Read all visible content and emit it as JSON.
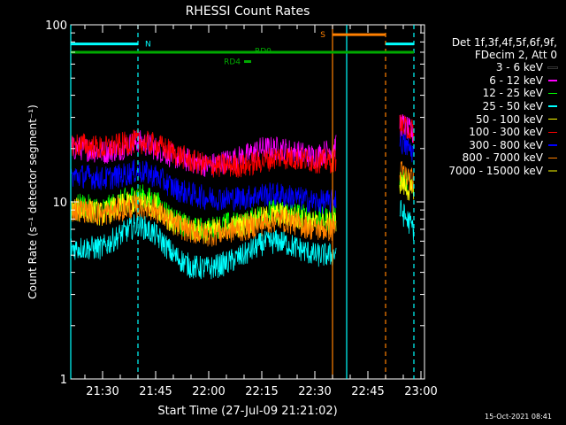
{
  "window": {
    "footer_stamp": "15-Oct-2021 08:41"
  },
  "legend": {
    "header_lines": [
      "Det 1f,3f,4f,5f,6f,9f,",
      "FDecim 2, Att 0"
    ]
  },
  "attenuator_labels": [
    {
      "text": "N",
      "color": "#00ffff"
    },
    {
      "text": "S",
      "color": "#ff8000"
    },
    {
      "text": "RD0",
      "color": "#00aa00"
    },
    {
      "text": "RD4",
      "color": "#00aa00"
    }
  ],
  "chart_data": {
    "type": "line",
    "title": "RHESSI Count Rates",
    "xlabel": "Start Time (27-Jul-09 21:21:02)",
    "ylabel": "Count Rate (s⁻¹ detector segment⁻¹)",
    "yscale": "log",
    "ylim": [
      1,
      100
    ],
    "xlim": [
      "21:21",
      "23:01"
    ],
    "y_ticks": [
      "1",
      "10",
      "100"
    ],
    "x_ticks": [
      "21:30",
      "21:45",
      "22:00",
      "22:15",
      "22:30",
      "22:45",
      "23:00"
    ],
    "grid": false,
    "legend_position": "right",
    "data_gap": {
      "start": "22:36",
      "end": "22:53"
    },
    "vertical_lines": [
      {
        "time": "21:21",
        "style": "solid",
        "color": "#00ffff"
      },
      {
        "time": "21:40",
        "style": "dashed",
        "color": "#00ffff"
      },
      {
        "time": "22:35",
        "style": "solid",
        "color": "#ff8000"
      },
      {
        "time": "22:39",
        "style": "solid",
        "color": "#00ffff"
      },
      {
        "time": "22:50",
        "style": "dashed",
        "color": "#ff8000"
      },
      {
        "time": "22:58",
        "style": "dashed",
        "color": "#00ffff"
      }
    ],
    "bars": [
      {
        "label": "N",
        "color": "#00ffff",
        "y": 78,
        "segments": [
          [
            "21:21",
            "21:40"
          ],
          [
            "22:50",
            "22:58"
          ]
        ]
      },
      {
        "label": "S",
        "color": "#ff8000",
        "y": 88,
        "segments": [
          [
            "22:35",
            "22:50"
          ]
        ]
      },
      {
        "label": "RD0",
        "color": "#00aa00",
        "y": 70,
        "segments": [
          [
            "21:21",
            "22:58"
          ]
        ]
      },
      {
        "label": "RD4",
        "color": "#00aa00",
        "y": 62,
        "segments": [
          [
            "22:10",
            "22:12"
          ]
        ]
      }
    ],
    "series": [
      {
        "name": "3 - 6 keV",
        "color": "#000000",
        "x": [
          "21:21",
          "21:25",
          "21:30",
          "21:35",
          "21:40",
          "21:45",
          "21:50",
          "21:55",
          "22:00",
          "22:05",
          "22:10",
          "22:15",
          "22:20",
          "22:25",
          "22:30",
          "22:35",
          "22:54",
          "22:58"
        ],
        "y": [
          9,
          9,
          8.5,
          9,
          10,
          9.5,
          8,
          7,
          7,
          7.5,
          7.5,
          9,
          10,
          9.5,
          9,
          9,
          20,
          16
        ]
      },
      {
        "name": "6 - 12 keV",
        "color": "#ff00ff",
        "x": [
          "21:21",
          "21:25",
          "21:30",
          "21:35",
          "21:40",
          "21:45",
          "21:50",
          "21:55",
          "22:00",
          "22:05",
          "22:10",
          "22:15",
          "22:20",
          "22:25",
          "22:30",
          "22:35",
          "22:54",
          "22:58"
        ],
        "y": [
          20,
          20,
          19,
          20,
          22,
          20,
          18,
          17,
          16,
          17,
          18,
          20,
          20,
          19,
          18,
          20,
          28,
          24
        ]
      },
      {
        "name": "12 - 25 keV",
        "color": "#00ff00",
        "x": [
          "21:21",
          "21:25",
          "21:30",
          "21:35",
          "21:40",
          "21:45",
          "21:50",
          "21:55",
          "22:00",
          "22:05",
          "22:10",
          "22:15",
          "22:20",
          "22:25",
          "22:30",
          "22:35",
          "22:54",
          "22:58"
        ],
        "y": [
          9.5,
          9.5,
          9,
          10,
          11,
          10,
          8,
          7,
          7,
          7.5,
          7.5,
          8.5,
          9,
          8.5,
          8,
          8,
          14,
          12
        ]
      },
      {
        "name": "25 - 50 keV",
        "color": "#00ffff",
        "x": [
          "21:21",
          "21:25",
          "21:30",
          "21:35",
          "21:40",
          "21:45",
          "21:50",
          "21:55",
          "22:00",
          "22:05",
          "22:10",
          "22:15",
          "22:20",
          "22:25",
          "22:30",
          "22:35",
          "22:54",
          "22:58"
        ],
        "y": [
          5.5,
          5.5,
          5.5,
          6.5,
          7.5,
          6.5,
          5,
          4.3,
          4.2,
          4.5,
          5,
          5.8,
          6,
          5.5,
          5,
          5,
          9,
          7
        ]
      },
      {
        "name": "50 - 100 keV",
        "color": "#ffff00",
        "x": [
          "21:21",
          "21:25",
          "21:30",
          "21:35",
          "21:40",
          "21:45",
          "21:50",
          "21:55",
          "22:00",
          "22:05",
          "22:10",
          "22:15",
          "22:20",
          "22:25",
          "22:30",
          "22:35",
          "22:54",
          "22:58"
        ],
        "y": [
          9,
          9,
          8.5,
          9.5,
          10,
          9.5,
          7.5,
          7,
          6.8,
          7,
          7.5,
          8,
          8.5,
          8,
          7.5,
          7.5,
          13,
          11
        ]
      },
      {
        "name": "100 - 300 keV",
        "color": "#ff0000",
        "x": [
          "21:21",
          "21:25",
          "21:30",
          "21:35",
          "21:40",
          "21:45",
          "21:50",
          "21:55",
          "22:00",
          "22:05",
          "22:10",
          "22:15",
          "22:20",
          "22:25",
          "22:30",
          "22:35",
          "22:54",
          "22:58"
        ],
        "y": [
          21,
          21,
          20,
          21,
          22,
          21,
          19,
          17,
          16,
          16,
          16,
          17,
          18,
          17.5,
          17,
          17,
          27,
          25
        ]
      },
      {
        "name": "300 - 800 keV",
        "color": "#0000ff",
        "x": [
          "21:21",
          "21:25",
          "21:30",
          "21:35",
          "21:40",
          "21:45",
          "21:50",
          "21:55",
          "22:00",
          "22:05",
          "22:10",
          "22:15",
          "22:20",
          "22:25",
          "22:30",
          "22:35",
          "22:54",
          "22:58"
        ],
        "y": [
          14,
          14,
          13.5,
          14,
          15,
          14,
          12,
          11,
          10.5,
          10.5,
          10.5,
          11,
          11,
          10.5,
          10,
          10,
          22,
          19
        ]
      },
      {
        "name": "800 - 7000 keV",
        "color": "#ff8000",
        "x": [
          "21:21",
          "21:25",
          "21:30",
          "21:35",
          "21:40",
          "21:45",
          "21:50",
          "21:55",
          "22:00",
          "22:05",
          "22:10",
          "22:15",
          "22:20",
          "22:25",
          "22:30",
          "22:35",
          "22:54",
          "22:58"
        ],
        "y": [
          9,
          9,
          8.5,
          9,
          9.5,
          9,
          7.5,
          6.8,
          6.5,
          6.8,
          7,
          7.5,
          8,
          7.5,
          7,
          7,
          15,
          13
        ]
      },
      {
        "name": "7000 - 15000 keV",
        "color": "#808000",
        "x": [],
        "y": []
      }
    ]
  }
}
